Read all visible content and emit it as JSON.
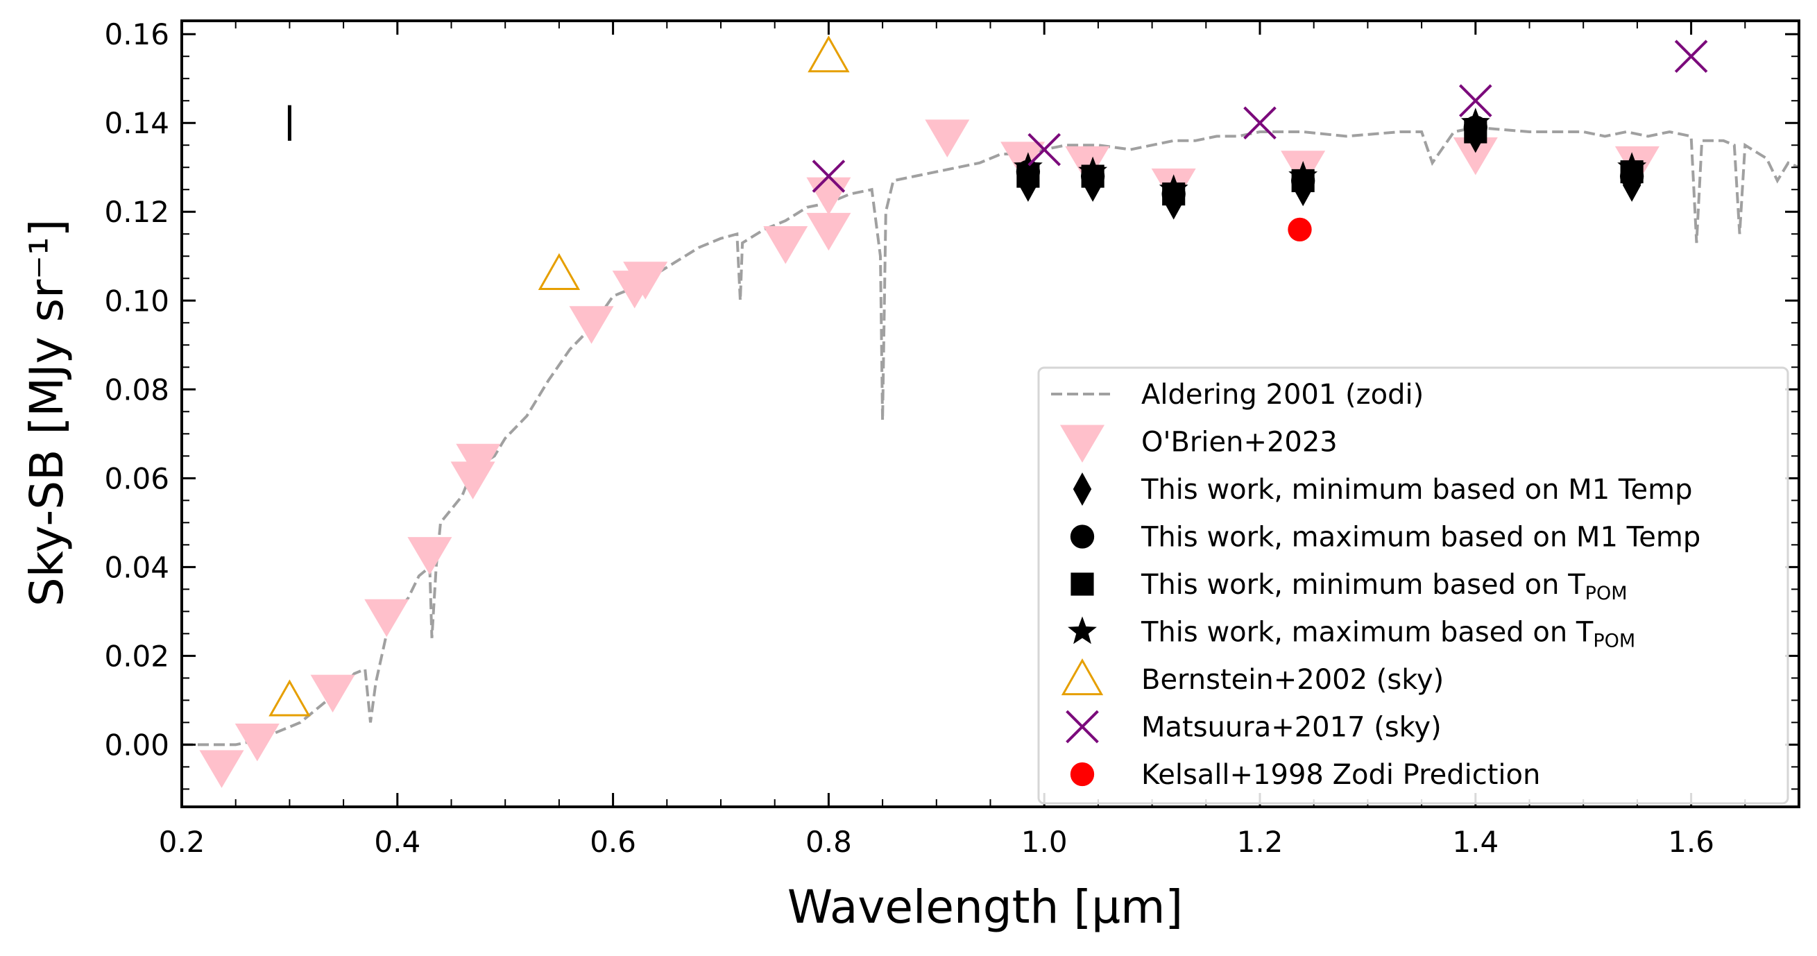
{
  "chart_data": {
    "type": "scatter",
    "xlabel": "Wavelength [μm]",
    "ylabel": "Sky-SB [MJy sr⁻¹]",
    "xlim": [
      0.2,
      1.7
    ],
    "ylim": [
      -0.014,
      0.163
    ],
    "x_ticks": [
      0.2,
      0.4,
      0.6,
      0.8,
      1.0,
      1.2,
      1.4,
      1.6
    ],
    "x_tick_labels": [
      "0.2",
      "0.4",
      "0.6",
      "0.8",
      "1.0",
      "1.2",
      "1.4",
      "1.6"
    ],
    "y_ticks": [
      0.0,
      0.02,
      0.04,
      0.06,
      0.08,
      0.1,
      0.12,
      0.14,
      0.16
    ],
    "y_tick_labels": [
      "0.00",
      "0.02",
      "0.04",
      "0.06",
      "0.08",
      "0.10",
      "0.12",
      "0.14",
      "0.16"
    ],
    "error_bar_annotation": {
      "x": 0.3,
      "y_low": 0.136,
      "y_high": 0.144
    },
    "legend_position": "lower-right",
    "series": [
      {
        "name": "Aldering 2001 (zodi)",
        "marker": "dashed-line",
        "color": "#a0a0a0",
        "x": [
          0.2,
          0.25,
          0.27,
          0.29,
          0.3,
          0.31,
          0.33,
          0.35,
          0.36,
          0.37,
          0.375,
          0.38,
          0.39,
          0.4,
          0.41,
          0.42,
          0.43,
          0.432,
          0.436,
          0.44,
          0.46,
          0.47,
          0.49,
          0.5,
          0.52,
          0.54,
          0.56,
          0.58,
          0.6,
          0.62,
          0.64,
          0.66,
          0.68,
          0.7,
          0.715,
          0.718,
          0.72,
          0.74,
          0.76,
          0.78,
          0.8,
          0.82,
          0.84,
          0.848,
          0.85,
          0.853,
          0.86,
          0.88,
          0.9,
          0.92,
          0.94,
          0.96,
          0.98,
          1.0,
          1.02,
          1.05,
          1.08,
          1.1,
          1.12,
          1.14,
          1.16,
          1.18,
          1.2,
          1.24,
          1.28,
          1.33,
          1.35,
          1.36,
          1.38,
          1.4,
          1.45,
          1.5,
          1.52,
          1.54,
          1.56,
          1.58,
          1.6,
          1.605,
          1.61,
          1.63,
          1.64,
          1.645,
          1.65,
          1.67,
          1.68,
          1.69,
          1.7
        ],
        "y": [
          0.0,
          0.0,
          0.001,
          0.003,
          0.004,
          0.005,
          0.009,
          0.013,
          0.016,
          0.017,
          0.005,
          0.014,
          0.025,
          0.03,
          0.033,
          0.038,
          0.04,
          0.024,
          0.04,
          0.05,
          0.056,
          0.062,
          0.065,
          0.069,
          0.074,
          0.082,
          0.089,
          0.094,
          0.101,
          0.103,
          0.106,
          0.109,
          0.112,
          0.114,
          0.115,
          0.1,
          0.113,
          0.116,
          0.118,
          0.121,
          0.122,
          0.124,
          0.125,
          0.11,
          0.073,
          0.12,
          0.127,
          0.128,
          0.129,
          0.13,
          0.131,
          0.133,
          0.133,
          0.134,
          0.135,
          0.135,
          0.134,
          0.135,
          0.136,
          0.136,
          0.137,
          0.137,
          0.138,
          0.138,
          0.137,
          0.138,
          0.138,
          0.131,
          0.138,
          0.139,
          0.138,
          0.138,
          0.137,
          0.138,
          0.137,
          0.138,
          0.137,
          0.113,
          0.136,
          0.136,
          0.135,
          0.115,
          0.135,
          0.132,
          0.127,
          0.131,
          0.13
        ]
      },
      {
        "name": "O'Brien+2023",
        "marker": "triangle-down",
        "color": "#ffc0cb",
        "x": [
          0.237,
          0.27,
          0.34,
          0.39,
          0.43,
          0.47,
          0.475,
          0.58,
          0.62,
          0.63,
          0.76,
          0.8,
          0.8,
          0.91,
          0.98,
          1.04,
          1.12,
          1.24,
          1.4,
          1.55
        ],
        "y": [
          -0.005,
          0.001,
          0.012,
          0.029,
          0.043,
          0.06,
          0.064,
          0.095,
          0.103,
          0.105,
          0.113,
          0.116,
          0.124,
          0.137,
          0.132,
          0.131,
          0.126,
          0.13,
          0.133,
          0.131
        ]
      },
      {
        "name": "This work, minimum based on M1 Temp",
        "marker": "diamond",
        "color": "#000000",
        "x": [
          0.985,
          1.045,
          1.12,
          1.24,
          1.4,
          1.545
        ],
        "y": [
          0.126,
          0.126,
          0.122,
          0.125,
          0.137,
          0.126
        ]
      },
      {
        "name": "This work, maximum based on M1 Temp",
        "marker": "circle",
        "color": "#000000",
        "x": [
          0.985,
          1.045,
          1.12,
          1.24,
          1.4,
          1.545
        ],
        "y": [
          0.129,
          0.128,
          0.124,
          0.127,
          0.139,
          0.128
        ]
      },
      {
        "name": "This work, minimum based on T_POM",
        "marker": "square",
        "color": "#000000",
        "x": [
          0.985,
          1.045,
          1.12,
          1.24,
          1.4,
          1.545
        ],
        "y": [
          0.128,
          0.128,
          0.124,
          0.127,
          0.138,
          0.129
        ]
      },
      {
        "name": "This work, maximum based on T_POM",
        "marker": "star",
        "color": "#000000",
        "x": [
          0.985,
          1.045,
          1.12,
          1.24,
          1.4,
          1.545
        ],
        "y": [
          0.13,
          0.129,
          0.125,
          0.128,
          0.14,
          0.13
        ]
      },
      {
        "name": "Bernstein+2002 (sky)",
        "marker": "triangle-up-open",
        "color": "#e69f00",
        "x": [
          0.3,
          0.55,
          0.8
        ],
        "y": [
          0.01,
          0.106,
          0.155
        ]
      },
      {
        "name": "Matsuura+2017 (sky)",
        "marker": "x",
        "color": "#7b0a7b",
        "x": [
          0.8,
          1.0,
          1.2,
          1.4,
          1.6
        ],
        "y": [
          0.128,
          0.134,
          0.14,
          0.145,
          0.155
        ]
      },
      {
        "name": "Kelsall+1998 Zodi Prediction",
        "marker": "circle",
        "color": "#ff0000",
        "x": [
          1.237
        ],
        "y": [
          0.116
        ]
      }
    ],
    "legend": [
      {
        "label": "Aldering 2001 (zodi)"
      },
      {
        "label": "O'Brien+2023"
      },
      {
        "label": "This work, minimum based on M1 Temp"
      },
      {
        "label": "This work, maximum based on M1 Temp"
      },
      {
        "label": "This work, minimum based on T",
        "sub": "POM"
      },
      {
        "label": "This work, maximum based on T",
        "sub": "POM"
      },
      {
        "label": "Bernstein+2002 (sky)"
      },
      {
        "label": "Matsuura+2017 (sky)"
      },
      {
        "label": "Kelsall+1998 Zodi Prediction"
      }
    ]
  }
}
